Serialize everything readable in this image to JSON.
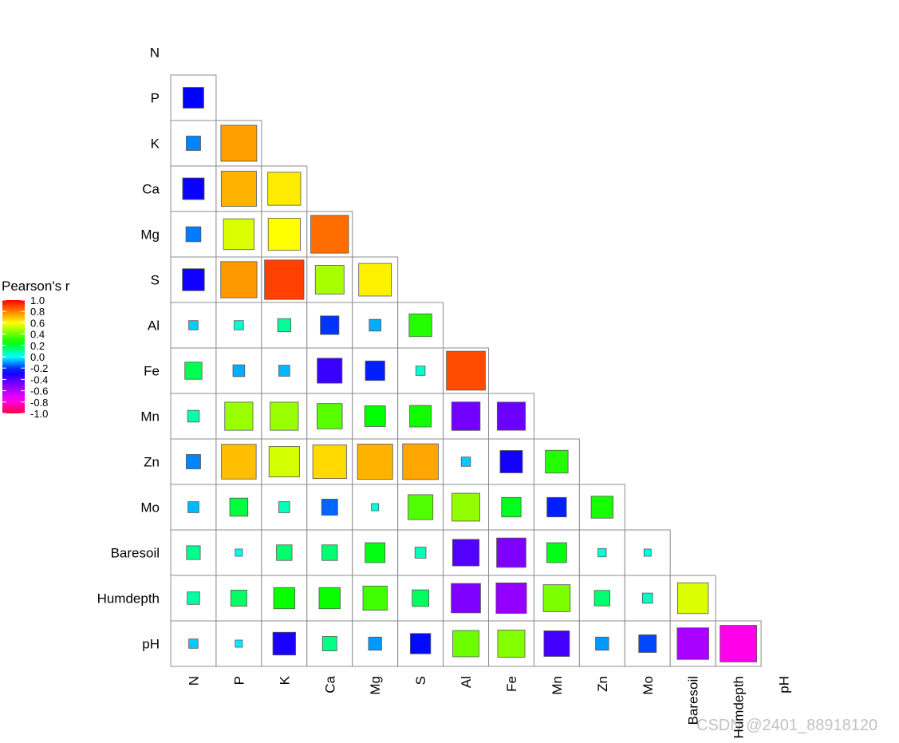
{
  "watermark": "CSDN @2401_88918120",
  "chart_data": {
    "type": "heatmap",
    "title": "",
    "variables": [
      "N",
      "P",
      "K",
      "Ca",
      "Mg",
      "S",
      "Al",
      "Fe",
      "Mn",
      "Zn",
      "Mo",
      "Baresoil",
      "Humdepth",
      "pH"
    ],
    "legend": {
      "title": "Pearson's r",
      "position": "left",
      "ticks": [
        "1.0",
        "0.8",
        "0.6",
        "0.4",
        "0.2",
        "0.0",
        "-0.2",
        "-0.4",
        "-0.6",
        "-0.8",
        "-1.0"
      ]
    },
    "colorscale": [
      "#ff0040",
      "#ff00ff",
      "#8000ff",
      "#0000ff",
      "#00ffff",
      "#00ff00",
      "#ffff00",
      "#ff0000"
    ],
    "lower_triangle": [
      [],
      [
        -0.25
      ],
      [
        -0.12,
        0.75
      ],
      [
        -0.27,
        0.72,
        0.63
      ],
      [
        -0.13,
        0.55,
        0.6,
        0.83
      ],
      [
        -0.28,
        0.76,
        0.9,
        0.48,
        0.62
      ],
      [
        -0.05,
        0.05,
        0.1,
        -0.2,
        -0.08,
        0.3
      ],
      [
        0.17,
        -0.08,
        -0.07,
        -0.36,
        -0.22,
        0.05,
        0.88
      ],
      [
        0.08,
        0.46,
        0.46,
        0.37,
        0.25,
        0.27,
        -0.47,
        -0.46
      ],
      [
        -0.12,
        0.7,
        0.54,
        0.66,
        0.72,
        0.74,
        -0.05,
        -0.29,
        0.3
      ],
      [
        -0.07,
        0.19,
        0.07,
        -0.15,
        0.03,
        0.36,
        0.45,
        0.22,
        -0.22,
        0.28
      ],
      [
        0.11,
        0.02,
        0.14,
        0.14,
        0.23,
        0.07,
        -0.41,
        -0.5,
        0.23,
        0.04,
        0.03
      ],
      [
        0.09,
        0.15,
        0.26,
        0.26,
        0.34,
        0.16,
        -0.5,
        -0.54,
        0.42,
        0.14,
        0.06,
        0.55
      ],
      [
        -0.05,
        -0.02,
        -0.3,
        0.12,
        -0.1,
        -0.24,
        0.4,
        0.43,
        -0.38,
        -0.1,
        -0.18,
        -0.58,
        -0.78
      ]
    ]
  }
}
